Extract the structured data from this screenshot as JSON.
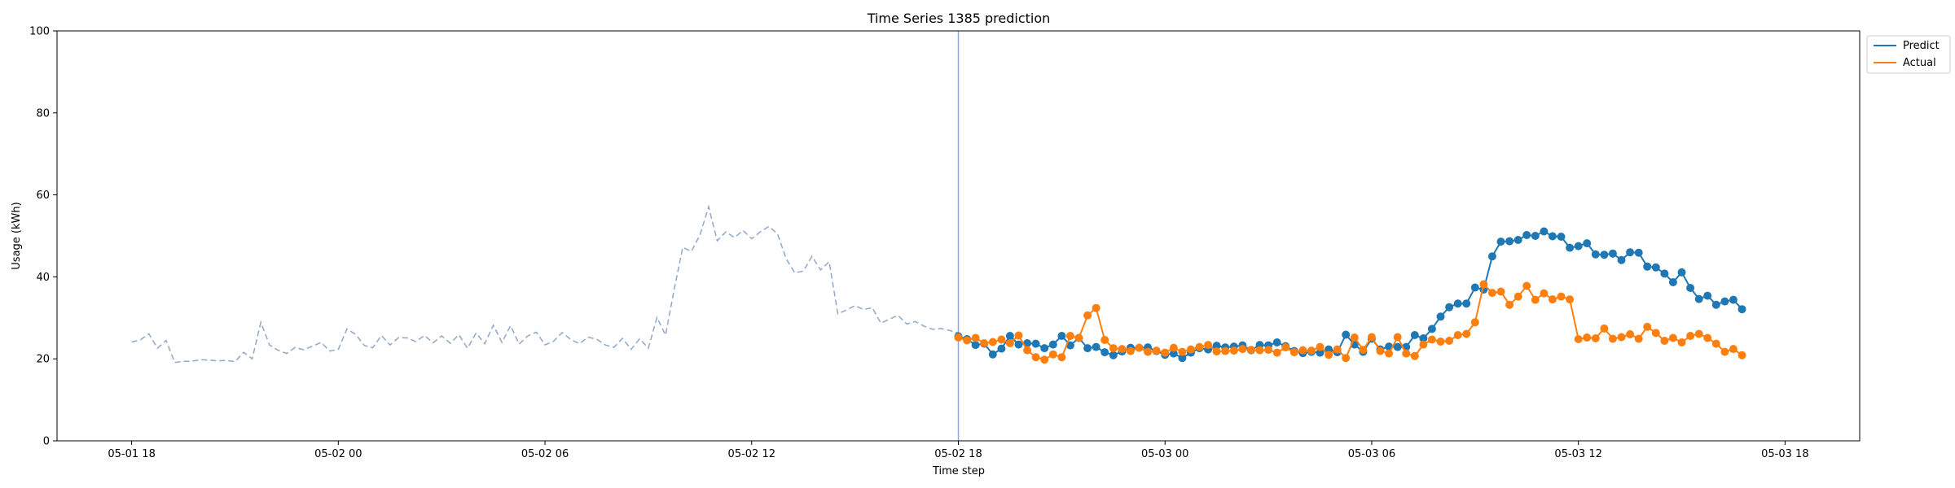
{
  "chart_data": {
    "type": "line",
    "title": "Time Series 1385 prediction",
    "xlabel": "Time step",
    "ylabel": "Usage (kWh)",
    "ylim": [
      0,
      100
    ],
    "yticks": [
      0,
      20,
      40,
      60,
      80,
      100
    ],
    "xlim": [
      "2023-05-01 15:50",
      "2023-05-03 20:10"
    ],
    "xticks": [
      {
        "t": "2023-05-01 18:00",
        "label": "05-01 18"
      },
      {
        "t": "2023-05-02 00:00",
        "label": "05-02 00"
      },
      {
        "t": "2023-05-02 06:00",
        "label": "05-02 06"
      },
      {
        "t": "2023-05-02 12:00",
        "label": "05-02 12"
      },
      {
        "t": "2023-05-02 18:00",
        "label": "05-02 18"
      },
      {
        "t": "2023-05-03 00:00",
        "label": "05-03 00"
      },
      {
        "t": "2023-05-03 06:00",
        "label": "05-03 06"
      },
      {
        "t": "2023-05-03 12:00",
        "label": "05-03 12"
      },
      {
        "t": "2023-05-03 18:00",
        "label": "05-03 18"
      }
    ],
    "grid": false,
    "legend_position": "top-right",
    "prediction_start": "2023-05-02 18:00",
    "history": {
      "start": "2023-05-01 18:00",
      "step_minutes": 15,
      "color": "#8fa8c8",
      "style": "dashed",
      "values": [
        24.1,
        24.6,
        26.1,
        22.6,
        24.5,
        19.1,
        19.4,
        19.4,
        19.8,
        19.7,
        19.5,
        19.6,
        19.3,
        21.6,
        20.0,
        28.9,
        23.4,
        22.1,
        21.3,
        22.8,
        22.2,
        23.1,
        24.0,
        21.9,
        22.3,
        27.3,
        26.0,
        23.3,
        22.7,
        25.7,
        23.4,
        25.2,
        25.1,
        24.2,
        25.7,
        23.9,
        25.6,
        23.8,
        25.9,
        22.6,
        26.3,
        23.7,
        28.2,
        24.0,
        28.1,
        23.6,
        25.6,
        26.5,
        23.4,
        24.3,
        26.4,
        24.7,
        23.7,
        25.3,
        24.8,
        23.4,
        22.8,
        25.0,
        22.3,
        24.9,
        22.6,
        30.1,
        25.8,
        36.9,
        47.2,
        46.2,
        50.3,
        57.1,
        48.8,
        51.0,
        49.6,
        51.3,
        49.3,
        51.0,
        52.3,
        50.5,
        44.4,
        41.0,
        41.4,
        45.0,
        41.7,
        43.7,
        31.0,
        31.9,
        33.0,
        32.0,
        32.5,
        28.7,
        29.7,
        30.6,
        28.5,
        29.1,
        28.0,
        27.2,
        27.4,
        26.9,
        26.3
      ]
    },
    "series": [
      {
        "name": "Predict",
        "color": "#1f77b4",
        "start": "2023-05-02 18:00",
        "step_minutes": 15,
        "values": [
          25.5,
          24.8,
          23.4,
          23.7,
          21.1,
          22.5,
          25.6,
          23.5,
          23.8,
          23.7,
          22.6,
          23.5,
          25.6,
          23.3,
          25.1,
          22.6,
          22.9,
          21.6,
          20.9,
          21.8,
          22.7,
          22.7,
          22.8,
          21.9,
          21.0,
          21.3,
          20.2,
          21.5,
          22.6,
          22.3,
          23.2,
          22.8,
          23.0,
          23.3,
          22.1,
          23.4,
          23.3,
          24.0,
          23.1,
          21.9,
          21.4,
          21.7,
          21.5,
          22.3,
          21.6,
          25.9,
          23.5,
          21.7,
          24.9,
          22.3,
          23.0,
          22.9,
          22.9,
          25.8,
          25.0,
          27.3,
          30.3,
          32.6,
          33.5,
          33.5,
          37.4,
          36.9,
          45.0,
          48.6,
          48.7,
          49.0,
          50.2,
          50.0,
          51.1,
          49.9,
          49.8,
          47.1,
          47.5,
          48.2,
          45.5,
          45.4,
          45.7,
          44.1,
          46.0,
          45.9,
          42.5,
          42.3,
          40.8,
          38.7,
          41.1,
          37.3,
          34.6,
          35.4,
          33.2,
          34.0,
          34.4,
          32.1
        ]
      },
      {
        "name": "Actual",
        "color": "#ff7f0e",
        "start": "2023-05-02 18:00",
        "step_minutes": 15,
        "values": [
          25.2,
          24.5,
          25.1,
          23.8,
          24.1,
          24.7,
          23.8,
          25.7,
          22.1,
          20.4,
          19.8,
          21.1,
          20.4,
          25.6,
          25.1,
          30.6,
          32.4,
          24.6,
          22.6,
          22.4,
          21.9,
          22.7,
          21.7,
          22.0,
          21.5,
          22.7,
          21.7,
          22.3,
          22.9,
          23.4,
          21.8,
          21.9,
          22.0,
          22.4,
          22.2,
          22.1,
          22.2,
          21.5,
          22.8,
          21.6,
          22.1,
          22.0,
          22.9,
          21.0,
          22.3,
          20.2,
          25.2,
          22.2,
          25.3,
          21.9,
          21.3,
          25.3,
          21.3,
          20.7,
          23.5,
          24.7,
          24.2,
          24.4,
          25.8,
          26.1,
          28.9,
          38.2,
          36.1,
          36.4,
          33.2,
          35.2,
          37.8,
          34.4,
          36.0,
          34.5,
          35.2,
          34.5,
          24.8,
          25.2,
          25.0,
          27.4,
          24.9,
          25.3,
          26.0,
          24.9,
          27.8,
          26.3,
          24.4,
          25.1,
          24.0,
          25.6,
          26.1,
          25.1,
          23.7,
          21.7,
          22.4,
          20.9
        ]
      }
    ],
    "legend": [
      {
        "label": "Predict",
        "color": "#1f77b4"
      },
      {
        "label": "Actual",
        "color": "#ff7f0e"
      }
    ]
  }
}
